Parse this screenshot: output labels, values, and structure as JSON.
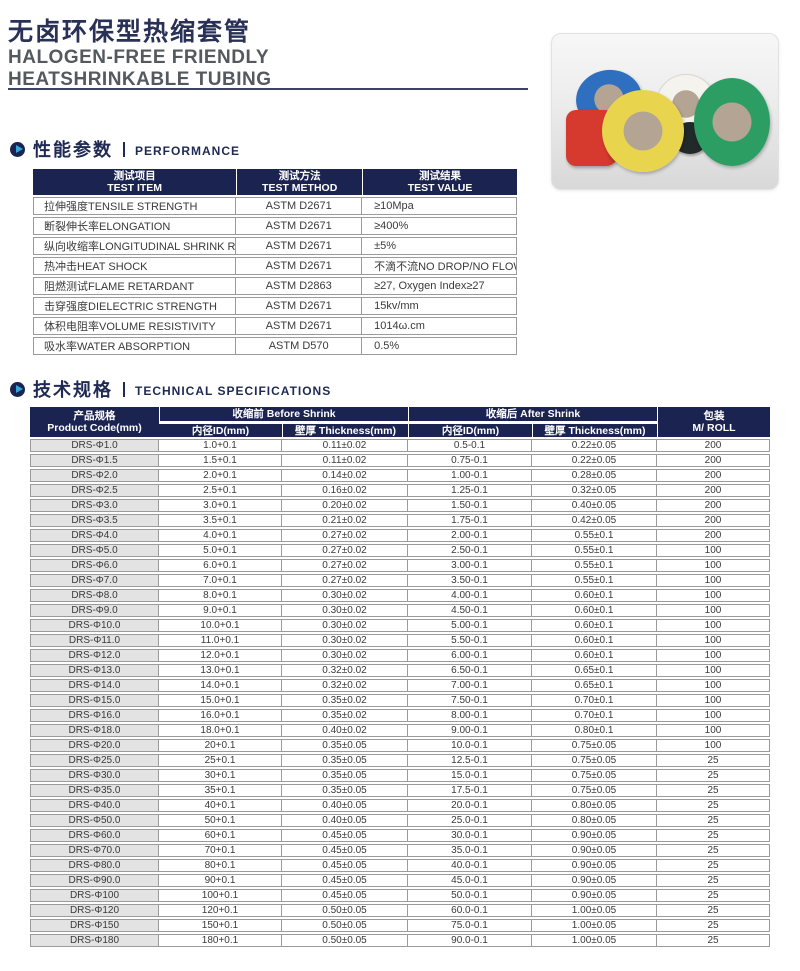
{
  "page": {
    "title_cn": "无卤环保型热缩套管",
    "subtitle_line1": "HALOGEN-FREE FRIENDLY",
    "subtitle_line2": "HEATSHRINKABLE TUBING"
  },
  "colors": {
    "navy": "#1b2350",
    "accent_cyan": "#2fa8dc",
    "title_navy": "#2a3157",
    "border_gray": "#9b9b9b",
    "first_col_gray": "#e3e3e3"
  },
  "product_image": {
    "description": "rolls of colored heat-shrinkable tubing",
    "rolls": [
      {
        "name": "roll-white",
        "color": "#f4f3ee"
      },
      {
        "name": "roll-blue",
        "color": "#2e6fc0"
      },
      {
        "name": "roll-red",
        "color": "#d63a2e"
      },
      {
        "name": "roll-black",
        "color": "#22292a"
      },
      {
        "name": "roll-yellow",
        "color": "#e9d44e"
      },
      {
        "name": "roll-green",
        "color": "#2d9e63"
      }
    ]
  },
  "performance": {
    "section_title_cn": "性能参数",
    "section_title_en": "PERFORMANCE",
    "columns": [
      {
        "cn": "测试项目",
        "en": "TEST ITEM"
      },
      {
        "cn": "测试方法",
        "en": "TEST METHOD"
      },
      {
        "cn": "测试结果",
        "en": "TEST VALUE"
      }
    ],
    "rows": [
      [
        "拉伸强度TENSILE STRENGTH",
        "ASTM D2671",
        "≥10Mpa"
      ],
      [
        "断裂伸长率ELONGATION",
        "ASTM D2671",
        "≥400%"
      ],
      [
        "纵向收缩率LONGITUDINAL SHRINK RATIO",
        "ASTM D2671",
        "±5%"
      ],
      [
        "热冲击HEAT SHOCK",
        "ASTM D2671",
        "不滴不流NO DROP/NO FLOW"
      ],
      [
        "阻燃测试FLAME RETARDANT",
        "ASTM D2863",
        "≥27, Oxygen Index≥27"
      ],
      [
        "击穿强度DIELECTRIC STRENGTH",
        "ASTM D2671",
        "15kv/mm"
      ],
      [
        "体积电阻率VOLUME RESISTIVITY",
        "ASTM D2671",
        "1014ω.cm"
      ],
      [
        "吸水率WATER ABSORPTION",
        "ASTM D570",
        "0.5%"
      ]
    ]
  },
  "specs": {
    "section_title_cn": "技术规格",
    "section_title_en": "TECHNICAL SPECIFICATIONS",
    "header": {
      "product_code_cn": "产品规格",
      "product_code_en": "Product Code(mm)",
      "before_shrink": "收缩前 Before Shrink",
      "after_shrink": "收缩后 After Shrink",
      "id_label": "内径ID(mm)",
      "thickness_label": "壁厚 Thickness(mm)",
      "package_cn": "包装",
      "package_en": "M/ ROLL"
    },
    "rows": [
      [
        "DRS-Φ1.0",
        "1.0+0.1",
        "0.11±0.02",
        "0.5-0.1",
        "0.22±0.05",
        "200"
      ],
      [
        "DRS-Φ1.5",
        "1.5+0.1",
        "0.11±0.02",
        "0.75-0.1",
        "0.22±0.05",
        "200"
      ],
      [
        "DRS-Φ2.0",
        "2.0+0.1",
        "0.14±0.02",
        "1.00-0.1",
        "0.28±0.05",
        "200"
      ],
      [
        "DRS-Φ2.5",
        "2.5+0.1",
        "0.16±0.02",
        "1.25-0.1",
        "0.32±0.05",
        "200"
      ],
      [
        "DRS-Φ3.0",
        "3.0+0.1",
        "0.20±0.02",
        "1.50-0.1",
        "0.40±0.05",
        "200"
      ],
      [
        "DRS-Φ3.5",
        "3.5+0.1",
        "0.21±0.02",
        "1.75-0.1",
        "0.42±0.05",
        "200"
      ],
      [
        "DRS-Φ4.0",
        "4.0+0.1",
        "0.27±0.02",
        "2.00-0.1",
        "0.55±0.1",
        "200"
      ],
      [
        "DRS-Φ5.0",
        "5.0+0.1",
        "0.27±0.02",
        "2.50-0.1",
        "0.55±0.1",
        "100"
      ],
      [
        "DRS-Φ6.0",
        "6.0+0.1",
        "0.27±0.02",
        "3.00-0.1",
        "0.55±0.1",
        "100"
      ],
      [
        "DRS-Φ7.0",
        "7.0+0.1",
        "0.27±0.02",
        "3.50-0.1",
        "0.55±0.1",
        "100"
      ],
      [
        "DRS-Φ8.0",
        "8.0+0.1",
        "0.30±0.02",
        "4.00-0.1",
        "0.60±0.1",
        "100"
      ],
      [
        "DRS-Φ9.0",
        "9.0+0.1",
        "0.30±0.02",
        "4.50-0.1",
        "0.60±0.1",
        "100"
      ],
      [
        "DRS-Φ10.0",
        "10.0+0.1",
        "0.30±0.02",
        "5.00-0.1",
        "0.60±0.1",
        "100"
      ],
      [
        "DRS-Φ11.0",
        "11.0+0.1",
        "0.30±0.02",
        "5.50-0.1",
        "0.60±0.1",
        "100"
      ],
      [
        "DRS-Φ12.0",
        "12.0+0.1",
        "0.30±0.02",
        "6.00-0.1",
        "0.60±0.1",
        "100"
      ],
      [
        "DRS-Φ13.0",
        "13.0+0.1",
        "0.32±0.02",
        "6.50-0.1",
        "0.65±0.1",
        "100"
      ],
      [
        "DRS-Φ14.0",
        "14.0+0.1",
        "0.32±0.02",
        "7.00-0.1",
        "0.65±0.1",
        "100"
      ],
      [
        "DRS-Φ15.0",
        "15.0+0.1",
        "0.35±0.02",
        "7.50-0.1",
        "0.70±0.1",
        "100"
      ],
      [
        "DRS-Φ16.0",
        "16.0+0.1",
        "0.35±0.02",
        "8.00-0.1",
        "0.70±0.1",
        "100"
      ],
      [
        "DRS-Φ18.0",
        "18.0+0.1",
        "0.40±0.02",
        "9.00-0.1",
        "0.80±0.1",
        "100"
      ],
      [
        "DRS-Φ20.0",
        "20+0.1",
        "0.35±0.05",
        "10.0-0.1",
        "0.75±0.05",
        "100"
      ],
      [
        "DRS-Φ25.0",
        "25+0.1",
        "0.35±0.05",
        "12.5-0.1",
        "0.75±0.05",
        "25"
      ],
      [
        "DRS-Φ30.0",
        "30+0.1",
        "0.35±0.05",
        "15.0-0.1",
        "0.75±0.05",
        "25"
      ],
      [
        "DRS-Φ35.0",
        "35+0.1",
        "0.35±0.05",
        "17.5-0.1",
        "0.75±0.05",
        "25"
      ],
      [
        "DRS-Φ40.0",
        "40+0.1",
        "0.40±0.05",
        "20.0-0.1",
        "0.80±0.05",
        "25"
      ],
      [
        "DRS-Φ50.0",
        "50+0.1",
        "0.40±0.05",
        "25.0-0.1",
        "0.80±0.05",
        "25"
      ],
      [
        "DRS-Φ60.0",
        "60+0.1",
        "0.45±0.05",
        "30.0-0.1",
        "0.90±0.05",
        "25"
      ],
      [
        "DRS-Φ70.0",
        "70+0.1",
        "0.45±0.05",
        "35.0-0.1",
        "0.90±0.05",
        "25"
      ],
      [
        "DRS-Φ80.0",
        "80+0.1",
        "0.45±0.05",
        "40.0-0.1",
        "0.90±0.05",
        "25"
      ],
      [
        "DRS-Φ90.0",
        "90+0.1",
        "0.45±0.05",
        "45.0-0.1",
        "0.90±0.05",
        "25"
      ],
      [
        "DRS-Φ100",
        "100+0.1",
        "0.45±0.05",
        "50.0-0.1",
        "0.90±0.05",
        "25"
      ],
      [
        "DRS-Φ120",
        "120+0.1",
        "0.50±0.05",
        "60.0-0.1",
        "1.00±0.05",
        "25"
      ],
      [
        "DRS-Φ150",
        "150+0.1",
        "0.50±0.05",
        "75.0-0.1",
        "1.00±0.05",
        "25"
      ],
      [
        "DRS-Φ180",
        "180+0.1",
        "0.50±0.05",
        "90.0-0.1",
        "1.00±0.05",
        "25"
      ]
    ]
  }
}
